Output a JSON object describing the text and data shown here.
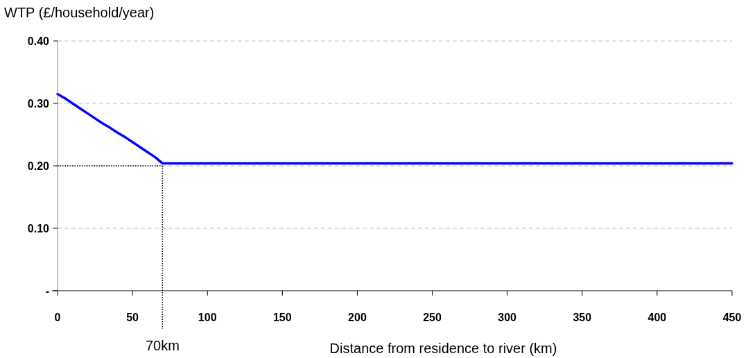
{
  "chart_data": {
    "type": "line",
    "ylabel": "WTP (£/household/year)",
    "xlabel": "Distance from residence to river (km)",
    "x": [
      0,
      5,
      10,
      15,
      20,
      25,
      30,
      35,
      40,
      45,
      50,
      55,
      60,
      65,
      70,
      100,
      200,
      300,
      400,
      450
    ],
    "series": [
      {
        "color": "#0000ff",
        "values": [
          0.315,
          0.308,
          0.3,
          0.292,
          0.284,
          0.276,
          0.268,
          0.261,
          0.253,
          0.246,
          0.238,
          0.23,
          0.222,
          0.214,
          0.204,
          0.204,
          0.204,
          0.204,
          0.204,
          0.204
        ]
      }
    ],
    "xlim": [
      0,
      450
    ],
    "xticks": [
      0,
      50,
      100,
      150,
      200,
      250,
      300,
      350,
      400,
      450
    ],
    "ylim": [
      0,
      0.4
    ],
    "yticks": [
      {
        "value": 0,
        "label": "-"
      },
      {
        "value": 0.1,
        "label": "0.10"
      },
      {
        "value": 0.2,
        "label": "0.20"
      },
      {
        "value": 0.3,
        "label": "0.30"
      },
      {
        "value": 0.4,
        "label": "0.40"
      }
    ],
    "grid": "y",
    "marker": "none",
    "line_style": "solid",
    "ref_lines": [
      {
        "axis": "x",
        "value": 70,
        "label": "70km",
        "line_style": "dotted",
        "color": "#000000"
      },
      {
        "axis": "y",
        "value": 0.2,
        "label": null,
        "line_style": "dotted",
        "color": "#000000"
      }
    ]
  }
}
